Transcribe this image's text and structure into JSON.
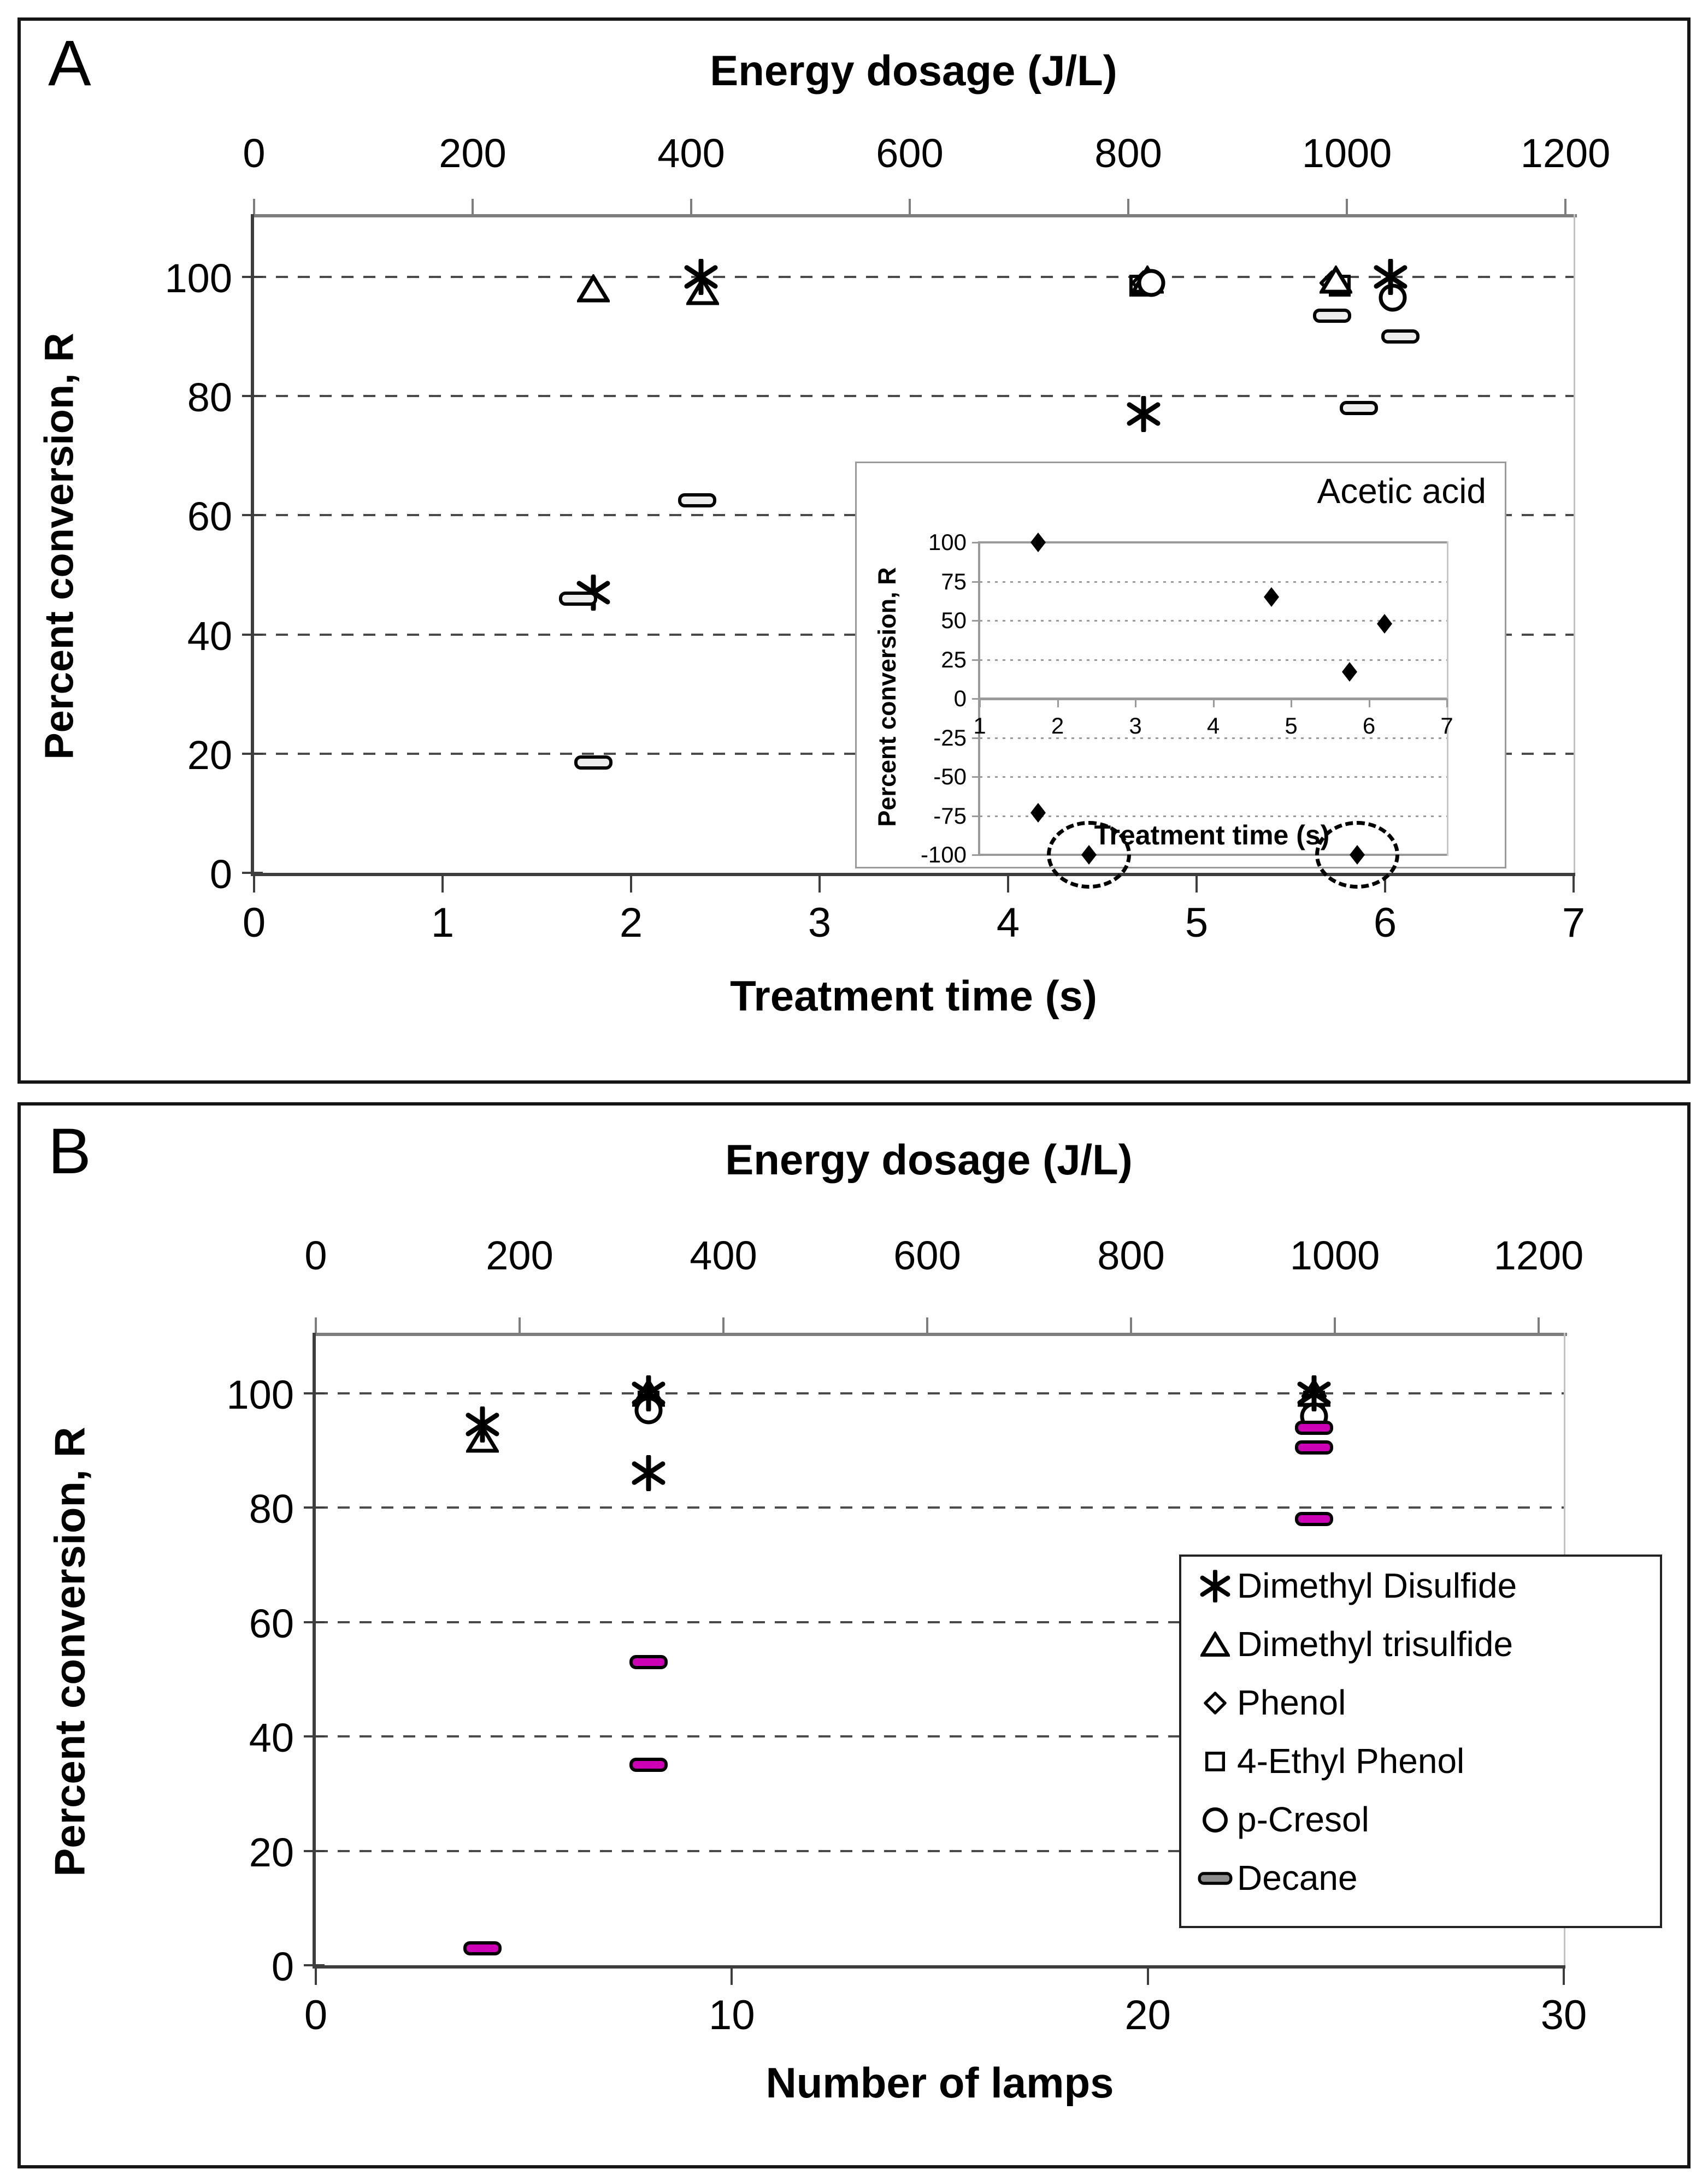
{
  "colors": {
    "decane_panel_a_fill": "#ededed",
    "decane_panel_b_fill": "#cc00b4",
    "legend_dash_fill": "#8c8c8c",
    "axis_dark": "#3d3d3d",
    "axis_gray": "#7d7d7d",
    "grid": "#4a4a4a"
  },
  "chart_data": [
    {
      "id": "panel_a",
      "type": "scatter",
      "panel_label": "A",
      "x2label": "Energy dosage (J/L)",
      "x2ticks": [
        0,
        200,
        400,
        600,
        800,
        1000,
        1200
      ],
      "xlabel": "Treatment time (s)",
      "xticks": [
        0,
        1,
        2,
        3,
        4,
        5,
        6,
        7
      ],
      "xlim": [
        0,
        7
      ],
      "ylabel": "Percent conversion, R",
      "yticks": [
        100,
        80,
        60,
        40,
        20,
        0
      ],
      "ylim": [
        0,
        110
      ],
      "gridlines": [
        100,
        80,
        60,
        40,
        20
      ],
      "grid_style": "dashed",
      "series": [
        {
          "name": "4-Ethyl Phenol",
          "marker": "square",
          "points": [
            [
              4.7,
              98.5
            ],
            [
              5.76,
              98.5
            ]
          ]
        },
        {
          "name": "Phenol",
          "marker": "diamond",
          "points": [
            [
              4.72,
              99
            ],
            [
              5.72,
              99
            ]
          ]
        },
        {
          "name": "Dimethyl trisulfide",
          "marker": "triangle",
          "points": [
            [
              1.8,
              98
            ],
            [
              2.38,
              97.5
            ],
            [
              4.74,
              99.5
            ],
            [
              5.74,
              99.5
            ]
          ]
        },
        {
          "name": "p-Cresol",
          "marker": "circle",
          "points": [
            [
              4.76,
              99
            ],
            [
              6.04,
              96.5
            ]
          ]
        },
        {
          "name": "Dimethyl Disulfide",
          "marker": "star",
          "points": [
            [
              1.8,
              47
            ],
            [
              2.37,
              100
            ],
            [
              4.72,
              77
            ],
            [
              6.03,
              100
            ]
          ]
        },
        {
          "name": "Decane",
          "marker": "dash",
          "fill": "#ededed",
          "points": [
            [
              1.72,
              46
            ],
            [
              1.8,
              18.5
            ],
            [
              2.35,
              62.5
            ],
            [
              5.72,
              93.5
            ],
            [
              5.86,
              78
            ],
            [
              6.08,
              90
            ]
          ]
        }
      ]
    },
    {
      "id": "inset_acetic_acid",
      "type": "scatter",
      "title": "Acetic acid",
      "xlabel": "Treatment time (s)",
      "xticks": [
        1,
        2,
        3,
        4,
        5,
        6,
        7
      ],
      "xlim": [
        1,
        7
      ],
      "ylabel": "Percent conversion, R",
      "yticks": [
        100,
        75,
        50,
        25,
        0,
        -25,
        -50,
        -75,
        -100
      ],
      "ylim": [
        -100,
        100
      ],
      "gridlines_dotted": [
        75,
        50,
        25,
        -25,
        -50,
        -75
      ],
      "gridlines_solid": [
        100,
        0,
        -100
      ],
      "series": [
        {
          "name": "Acetic acid",
          "marker": "filled-diamond",
          "points": [
            [
              1.75,
              100
            ],
            [
              4.75,
              65
            ],
            [
              6.2,
              48
            ],
            [
              5.75,
              17
            ],
            [
              1.75,
              -73
            ],
            [
              2.4,
              -100
            ],
            [
              5.85,
              -100
            ]
          ]
        }
      ],
      "circled_points": [
        [
          2.4,
          -100
        ],
        [
          5.85,
          -100
        ]
      ]
    },
    {
      "id": "panel_b",
      "type": "scatter",
      "panel_label": "B",
      "x2label": "Energy dosage (J/L)",
      "x2ticks": [
        0,
        200,
        400,
        600,
        800,
        1000,
        1200
      ],
      "xlabel": "Number of lamps",
      "xticks": [
        0,
        10,
        20,
        30
      ],
      "xlim": [
        0,
        30
      ],
      "ylabel": "Percent conversion, R",
      "yticks": [
        100,
        80,
        60,
        40,
        20,
        0
      ],
      "ylim": [
        0,
        110
      ],
      "gridlines": [
        100,
        80,
        60,
        40,
        20
      ],
      "grid_style": "dashed",
      "series": [
        {
          "name": "4-Ethyl Phenol",
          "marker": "square",
          "points": [
            [
              8,
              98.5
            ],
            [
              24,
              98.5
            ]
          ]
        },
        {
          "name": "Phenol",
          "marker": "diamond",
          "points": [
            [
              8,
              99
            ],
            [
              24,
              99.5
            ]
          ]
        },
        {
          "name": "Dimethyl trisulfide",
          "marker": "triangle",
          "points": [
            [
              4,
              92
            ],
            [
              8,
              100
            ],
            [
              24,
              100
            ]
          ]
        },
        {
          "name": "p-Cresol",
          "marker": "circle",
          "points": [
            [
              8,
              97
            ],
            [
              24,
              96
            ]
          ]
        },
        {
          "name": "Dimethyl Disulfide",
          "marker": "star",
          "points": [
            [
              4,
              94.5
            ],
            [
              8,
              100
            ],
            [
              8,
              86
            ],
            [
              24,
              100
            ]
          ]
        },
        {
          "name": "Decane",
          "marker": "dash",
          "fill": "#cc00b4",
          "points": [
            [
              4,
              3
            ],
            [
              8,
              53
            ],
            [
              8,
              35
            ],
            [
              24,
              94
            ],
            [
              24,
              90.5
            ],
            [
              24,
              78
            ]
          ]
        }
      ],
      "legend": {
        "entries": [
          {
            "label": "Dimethyl Disulfide",
            "marker": "star"
          },
          {
            "label": "Dimethyl trisulfide",
            "marker": "triangle"
          },
          {
            "label": "Phenol",
            "marker": "diamond"
          },
          {
            "label": "4-Ethyl Phenol",
            "marker": "square"
          },
          {
            "label": "p-Cresol",
            "marker": "circle"
          },
          {
            "label": "Decane",
            "marker": "dash",
            "fill": "#8c8c8c"
          }
        ]
      }
    }
  ]
}
